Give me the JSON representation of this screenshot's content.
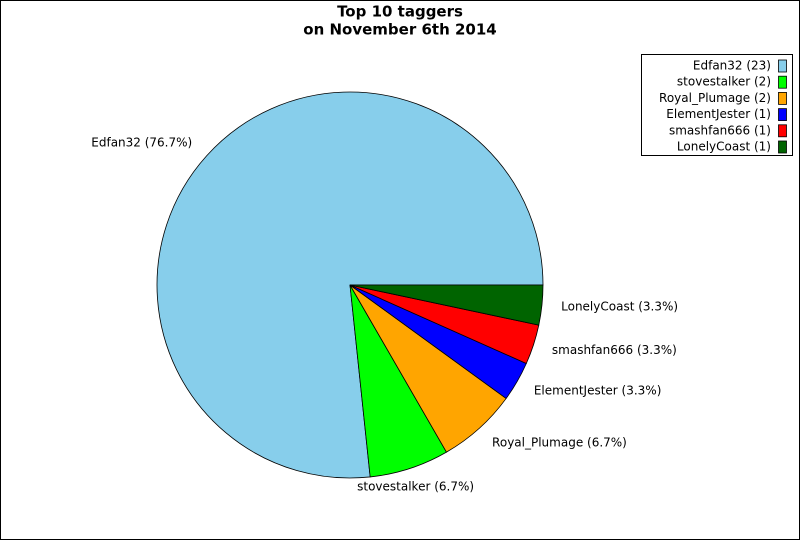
{
  "chart_data": {
    "type": "pie",
    "title": [
      "Top 10 taggers",
      "on November 6th 2014"
    ],
    "categories": [
      "Edfan32",
      "stovestalker",
      "Royal_Plumage",
      "ElementJester",
      "smashfan666",
      "LonelyCoast"
    ],
    "values": [
      23,
      2,
      2,
      1,
      1,
      1
    ],
    "value_labels": [
      "Edfan32 (76.7%)",
      "stovestalker (6.7%)",
      "Royal_Plumage (6.7%)",
      "ElementJester (3.3%)",
      "smashfan666 (3.3%)",
      "LonelyCoast (3.3%)"
    ],
    "legend_labels": [
      "Edfan32 (23)",
      "stovestalker (2)",
      "Royal_Plumage (2)",
      "ElementJester (1)",
      "smashfan666 (1)",
      "LonelyCoast (1)"
    ],
    "colors": [
      "#87ceeb",
      "#00ff00",
      "#ffa500",
      "#0000ff",
      "#ff0000",
      "#006400"
    ],
    "legend_position": "upper right"
  }
}
